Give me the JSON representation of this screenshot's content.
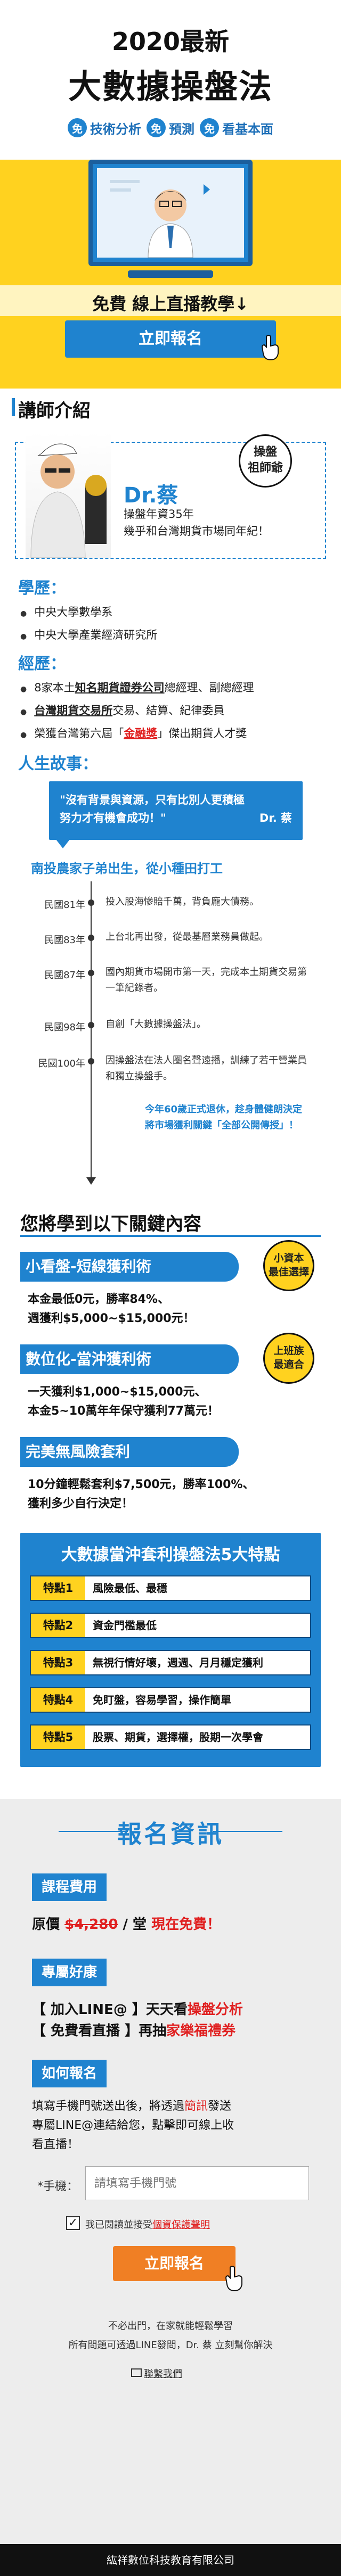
{
  "hero": {
    "title_line1": "2020最新",
    "title_line2": "大數據操盤法",
    "tags": [
      {
        "badge": "免",
        "label": "技術分析"
      },
      {
        "badge": "免",
        "label": "預測"
      },
      {
        "badge": "免",
        "label": "看基本面"
      }
    ],
    "subtitle": "免費 線上直播教學↓",
    "cta_label": "立即報名"
  },
  "teacher": {
    "heading": "講師介紹",
    "name": "Dr.蔡",
    "desc_line1": "操盤年資35年",
    "desc_line2": "幾乎和台灣期貨市場同年紀！",
    "bubble_line1": "操盤",
    "bubble_line2": "祖師爺",
    "education_heading": "學歷：",
    "education": [
      "中央大學數學系",
      "中央大學產業經濟研究所"
    ],
    "experience_heading": "經歷：",
    "experience": [
      {
        "pre": "8家本土",
        "em": "知名期貨證券公司",
        "post": "總經理、副總經理"
      },
      {
        "pre": "",
        "em": "台灣期貨交易所",
        "post": "交易、結算、紀律委員"
      },
      {
        "pre": "榮獲台灣第六屆「",
        "em": "金融獎",
        "post": "」傑出期貨人才獎"
      }
    ],
    "story_heading": "人生故事：",
    "quote_line1": "\"沒有背景與資源，只有比別人更積極",
    "quote_line2": "努力才有機會成功！\"",
    "quote_author": "Dr. 蔡"
  },
  "timeline": {
    "title": "南投農家子弟出生，從小種田打工",
    "items": [
      {
        "year": "民國81年",
        "text": "投入股海慘賠千萬，背負龐大債務。"
      },
      {
        "year": "民國83年",
        "text": "上台北再出發，從最基層業務員做起。"
      },
      {
        "year": "民國87年",
        "text": "國內期貨市場開市第一天，完成本土期貨交易第一筆紀錄者。"
      },
      {
        "year": "民國98年",
        "text": "自創「大數據操盤法」。"
      },
      {
        "year": "民國100年",
        "text": "因操盤法在法人圈名聲遠播，訓練了若干營業員和獨立操盤手。"
      }
    ],
    "closing_line1": "今年60歲正式退休，趁身體健朗決定",
    "closing_line2": "將市場獲利關鍵「全部公開傳授」！"
  },
  "learn": {
    "heading": "您將學到以下關鍵內容",
    "tabs": [
      {
        "title": "小看盤-短線獲利術",
        "badge_line1": "小資本",
        "badge_line2": "最佳選擇",
        "lines": [
          "本金最低0元，勝率84%、",
          "週獲利$5,000~$15,000元！"
        ]
      },
      {
        "title": "數位化-當沖獲利術",
        "badge_line1": "上班族",
        "badge_line2": "最適合",
        "lines": [
          "一天獲利$1,000~$15,000元、",
          "本金5~10萬年年保守獲利77萬元！"
        ]
      },
      {
        "title": "完美無風險套利",
        "lines": [
          "10分鐘輕鬆套利$7,500元，勝率100%、",
          "獲利多少自行決定！"
        ]
      }
    ]
  },
  "features": {
    "title": "大數據當沖套利操盤法5大特點",
    "items": [
      {
        "label": "特點1",
        "text": "風險最低、最穩"
      },
      {
        "label": "特點2",
        "text": "資金門檻最低"
      },
      {
        "label": "特點3",
        "text": "無視行情好壞，週週、月月穩定獲利"
      },
      {
        "label": "特點4",
        "text": "免盯盤，容易學習，操作簡單"
      },
      {
        "label": "特點5",
        "text": "股票、期貨，選擇權，股期一次學會"
      }
    ]
  },
  "registration": {
    "title": "報名資訊",
    "fee_tag": "課程費用",
    "fee_prefix": "原價",
    "fee_original": "$4,280",
    "fee_unit": "/ 堂",
    "fee_now": "現在免費！",
    "bonus_tag": "專屬好康",
    "bonus_line1_pre": "【 加入LINE@ 】天天看",
    "bonus_line1_em": "操盤分析",
    "bonus_line2_pre": "【 免費看直播 】再抽",
    "bonus_line2_em": "家樂福禮券",
    "how_tag": "如何報名",
    "how_line1_pre": "填寫手機門號送出後，將透過",
    "how_line1_em": "簡訊",
    "how_line1_post": "發送",
    "how_line2": "專屬LINE@連結給您，點擊即可線上收",
    "how_line3": "看直播！",
    "phone_label": "*手機：",
    "phone_placeholder": "請填寫手機門號",
    "consent_pre": "我已閱讀並接受",
    "consent_link": "個資保護聲明",
    "submit_label": "立即報名",
    "note_line1": "不必出門，在家就能輕鬆學習",
    "note_line2": "所有問題可透過LINE發問，Dr. 蔡 立刻幫你解決",
    "contact_label": "聯繫我們"
  },
  "footer": {
    "company": "紘祥數位科技教育有限公司"
  },
  "colors": {
    "primary": "#1f83cf",
    "accent_yellow": "#ffd21f",
    "alert_red": "#e02020",
    "cta_orange": "#f07f24"
  }
}
